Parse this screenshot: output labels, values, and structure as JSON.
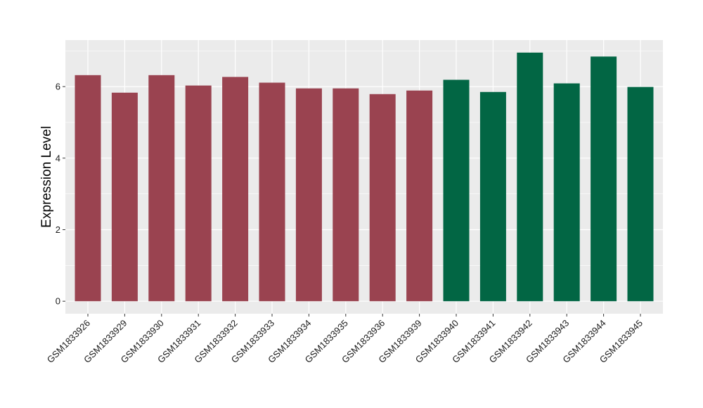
{
  "chart_data": {
    "type": "bar",
    "title": "",
    "xlabel": "",
    "ylabel": "Expression Level",
    "ylim": [
      0,
      7.3
    ],
    "y_ticks": [
      0,
      2,
      4,
      6
    ],
    "grid": true,
    "legend": "none",
    "categories": [
      "GSM1833926",
      "GSM1833929",
      "GSM1833930",
      "GSM1833931",
      "GSM1833932",
      "GSM1833933",
      "GSM1833934",
      "GSM1833935",
      "GSM1833936",
      "GSM1833939",
      "GSM1833940",
      "GSM1833941",
      "GSM1833942",
      "GSM1833943",
      "GSM1833944",
      "GSM1833945"
    ],
    "values": [
      6.32,
      5.83,
      6.32,
      6.03,
      6.27,
      6.11,
      5.95,
      5.95,
      5.79,
      5.89,
      6.19,
      5.85,
      6.95,
      6.09,
      6.84,
      5.99
    ],
    "bar_groups": [
      0,
      0,
      0,
      0,
      0,
      0,
      0,
      0,
      0,
      0,
      1,
      1,
      1,
      1,
      1,
      1
    ],
    "group_colors": [
      "#9a4350",
      "#026644"
    ],
    "panel_background": "#ebebeb",
    "grid_color": "#ffffff"
  }
}
